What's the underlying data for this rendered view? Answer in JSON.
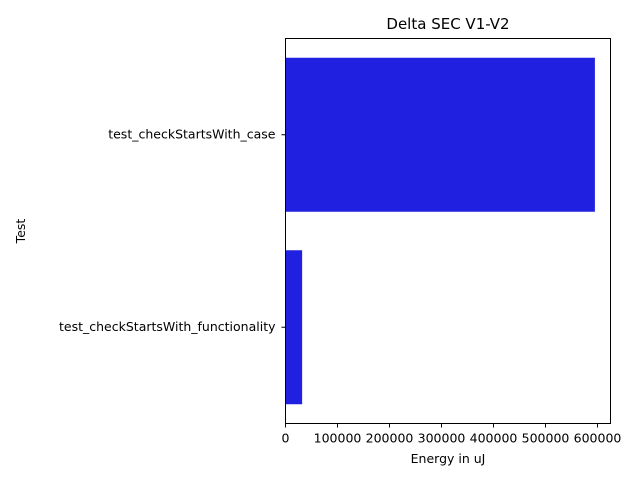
{
  "chart_data": {
    "type": "bar",
    "orientation": "horizontal",
    "title": "Delta SEC V1-V2",
    "xlabel": "Energy in uJ",
    "ylabel": "Test",
    "categories": [
      "test_checkStartsWith_case",
      "test_checkStartsWith_functionality"
    ],
    "values": [
      595000,
      32000
    ],
    "xlim": [
      0,
      625000
    ],
    "xticks": [
      0,
      100000,
      200000,
      300000,
      400000,
      500000,
      600000
    ],
    "xtick_labels": [
      "0",
      "100000",
      "200000",
      "300000",
      "400000",
      "500000",
      "600000"
    ],
    "bar_color": "#2020e0",
    "grid": false,
    "legend": "none"
  }
}
